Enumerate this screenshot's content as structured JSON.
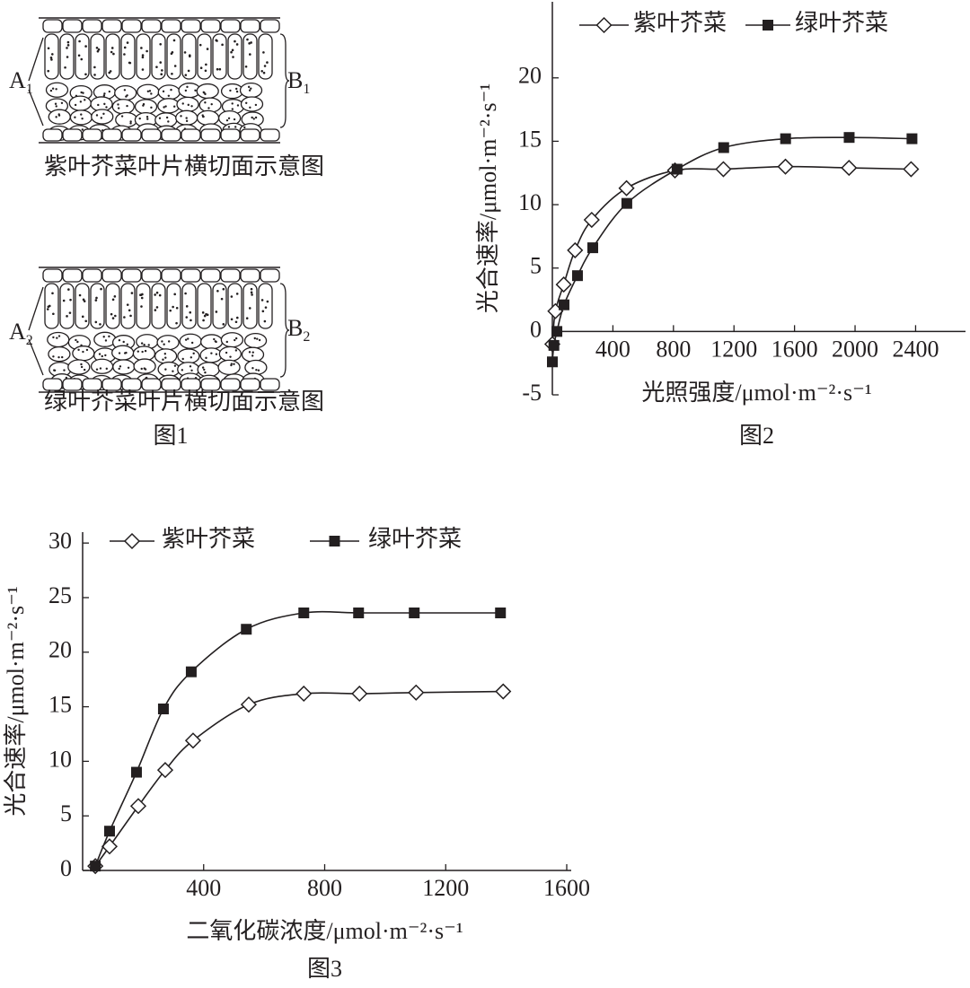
{
  "figure1": {
    "panels": [
      {
        "label_a": [
          "A",
          "1"
        ],
        "label_b": [
          "B",
          "1"
        ],
        "caption": "紫叶芥菜叶片横切面示意图"
      },
      {
        "label_a": [
          "A",
          "2"
        ],
        "label_b": [
          "B",
          "2"
        ],
        "caption": "绿叶芥菜叶片横切面示意图"
      }
    ],
    "caption": "图1"
  },
  "chart_data": [
    {
      "type": "line",
      "caption": "图2",
      "xlabel": "光照强度/μmol·m⁻²·s⁻¹",
      "ylabel": "光合速率/μmol·m⁻²·s⁻¹",
      "xlim": [
        0,
        2700
      ],
      "ylim": [
        -5,
        26
      ],
      "xticks": [
        400,
        800,
        1200,
        1600,
        2000,
        2400
      ],
      "yticks": [
        -5,
        0,
        5,
        10,
        15,
        20
      ],
      "legend": "top",
      "series": [
        {
          "name": "紫叶芥菜",
          "color": "#231f20",
          "marker": "diamond",
          "x": [
            0,
            20,
            75,
            150,
            260,
            490,
            810,
            1130,
            1540,
            1960,
            2370
          ],
          "values": [
            -1,
            1.6,
            3.7,
            6.4,
            8.8,
            11.3,
            12.7,
            12.8,
            13.0,
            12.9,
            12.8
          ]
        },
        {
          "name": "绿叶芥菜",
          "color": "#231f20",
          "marker": "square",
          "x": [
            0,
            10,
            30,
            77,
            166,
            267,
            492,
            824,
            1132,
            1541,
            1961,
            2376
          ],
          "values": [
            -2.4,
            -1.1,
            0,
            2.1,
            4.4,
            6.6,
            10.1,
            12.8,
            14.5,
            15.2,
            15.3,
            15.2
          ]
        }
      ]
    },
    {
      "type": "line",
      "caption": "图3",
      "xlabel": "二氧化碳浓度/μmol·m⁻²·s⁻¹",
      "ylabel": "光合速率/μmol·m⁻²·s⁻¹",
      "xlim": [
        0,
        1600
      ],
      "ylim": [
        0,
        31
      ],
      "xticks": [
        400,
        800,
        1200,
        1600
      ],
      "yticks": [
        0,
        5,
        10,
        15,
        20,
        25,
        30
      ],
      "legend": "top",
      "series": [
        {
          "name": "紫叶芥菜",
          "color": "#231f20",
          "marker": "diamond",
          "x": [
            42,
            89,
            184,
            273,
            365,
            549,
            731,
            915,
            1102,
            1390
          ],
          "values": [
            0.4,
            2.2,
            5.9,
            9.2,
            11.9,
            15.2,
            16.2,
            16.2,
            16.3,
            16.4
          ]
        },
        {
          "name": "绿叶芥菜",
          "color": "#231f20",
          "marker": "square",
          "x": [
            42,
            89,
            178,
            267,
            359,
            541,
            731,
            912,
            1096,
            1381
          ],
          "values": [
            0.4,
            3.6,
            9.0,
            14.8,
            18.2,
            22.1,
            23.6,
            23.6,
            23.6,
            23.6
          ]
        }
      ]
    }
  ]
}
